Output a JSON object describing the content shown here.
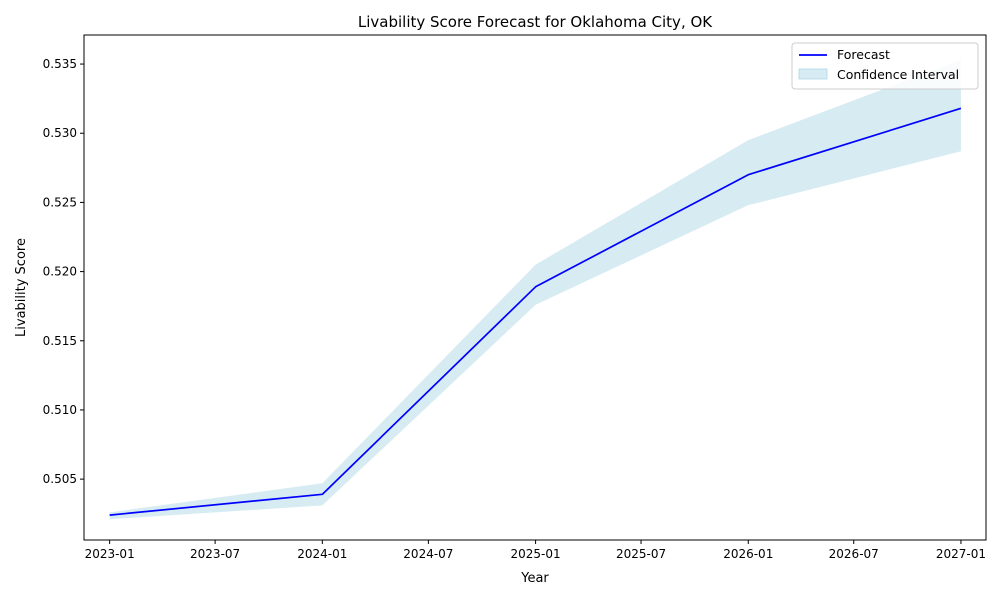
{
  "chart_data": {
    "type": "line",
    "title": "Livability Score Forecast for Oklahoma City, OK",
    "xlabel": "Year",
    "ylabel": "Livability Score",
    "x_ticks": [
      "2023-01",
      "2023-07",
      "2024-01",
      "2024-07",
      "2025-01",
      "2025-07",
      "2026-01",
      "2026-07",
      "2027-01"
    ],
    "y_ticks": [
      "0.505",
      "0.510",
      "0.515",
      "0.520",
      "0.525",
      "0.530",
      "0.535"
    ],
    "xlim": [
      "2022-11-18",
      "2027-02-13"
    ],
    "ylim": [
      0.5006,
      0.5371
    ],
    "series": [
      {
        "name": "Forecast",
        "color": "#0000ff",
        "x": [
          "2023-01-01",
          "2024-01-01",
          "2025-01-01",
          "2026-01-01",
          "2027-01-01"
        ],
        "y": [
          0.5024,
          0.5039,
          0.5189,
          0.527,
          0.5318
        ]
      }
    ],
    "confidence_interval": {
      "name": "Confidence Interval",
      "color": "#add8e6",
      "x": [
        "2023-01-01",
        "2024-01-01",
        "2025-01-01",
        "2026-01-01",
        "2027-01-01"
      ],
      "lower": [
        0.5021,
        0.5031,
        0.5176,
        0.5248,
        0.5287
      ],
      "upper": [
        0.5026,
        0.5047,
        0.5205,
        0.5295,
        0.5353
      ]
    },
    "legend_position": "top-right",
    "grid": false
  }
}
